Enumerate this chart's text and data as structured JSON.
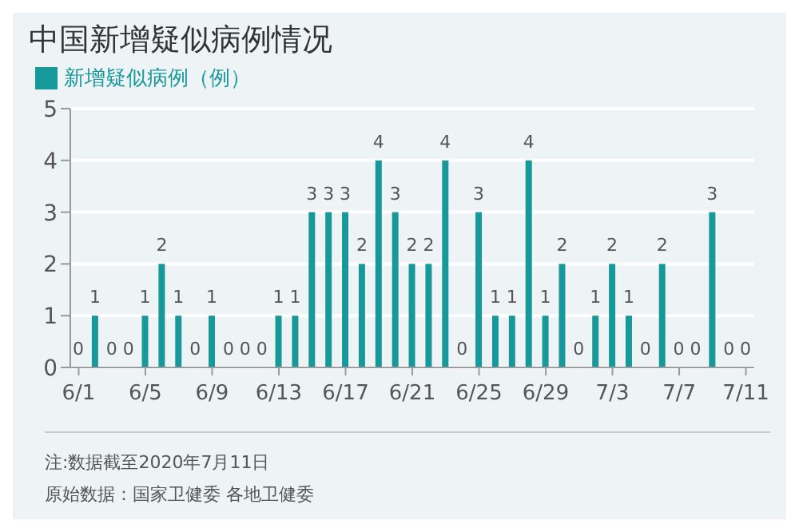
{
  "chart_data": {
    "type": "bar",
    "title": "中国新增疑似病例情况",
    "categories": [
      "6/1",
      null,
      null,
      null,
      "6/5",
      null,
      null,
      null,
      "6/9",
      null,
      null,
      null,
      "6/13",
      null,
      null,
      null,
      "6/17",
      null,
      null,
      null,
      "6/21",
      null,
      null,
      null,
      "6/25",
      null,
      null,
      null,
      "6/29",
      null,
      null,
      null,
      "7/3",
      null,
      null,
      null,
      "7/7",
      null,
      null,
      null,
      "7/11"
    ],
    "series": [
      {
        "name": "新增疑似病例（例）",
        "color": "#17999b",
        "values": [
          0,
          1,
          0,
          0,
          1,
          2,
          1,
          0,
          1,
          0,
          0,
          0,
          1,
          1,
          3,
          3,
          3,
          2,
          4,
          3,
          2,
          2,
          4,
          0,
          3,
          1,
          1,
          4,
          1,
          2,
          0,
          1,
          2,
          1,
          0,
          2,
          0,
          0,
          3,
          0,
          0
        ]
      }
    ],
    "ylim": [
      0,
      5
    ],
    "yticks": [
      0,
      1,
      2,
      3,
      4,
      5
    ],
    "grid": "y",
    "legend": "top left",
    "data_labels": true,
    "annotations": [
      "注:数据截至2020年7月11日",
      "原始数据：国家卫健委 各地卫健委"
    ]
  }
}
